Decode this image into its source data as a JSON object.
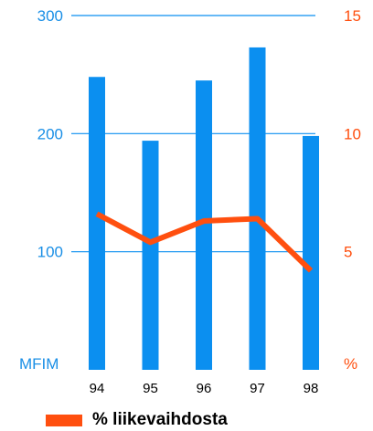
{
  "chart_data": {
    "type": "bar",
    "categories": [
      "94",
      "95",
      "96",
      "97",
      "98"
    ],
    "series": [
      {
        "type": "bar",
        "axis": "left",
        "values": [
          248,
          194,
          245,
          273,
          198
        ]
      },
      {
        "type": "line",
        "axis": "right",
        "name": "% liikevaihdosta",
        "values": [
          6.6,
          5.4,
          6.3,
          6.4,
          4.2
        ]
      }
    ],
    "left_axis": {
      "ylim": [
        0,
        300
      ],
      "ticks": [
        100,
        200,
        300
      ],
      "unit_label": "MFIM"
    },
    "right_axis": {
      "ylim": [
        0,
        15
      ],
      "ticks": [
        5,
        10,
        15
      ],
      "unit_label": "%"
    },
    "grid": true,
    "legend": "bottom-left"
  },
  "colors": {
    "bar": "#0b8ff0",
    "line": "#ff4f0f",
    "left_axis_text": "#1a8fe6",
    "right_axis_text": "#ff4f0f"
  }
}
